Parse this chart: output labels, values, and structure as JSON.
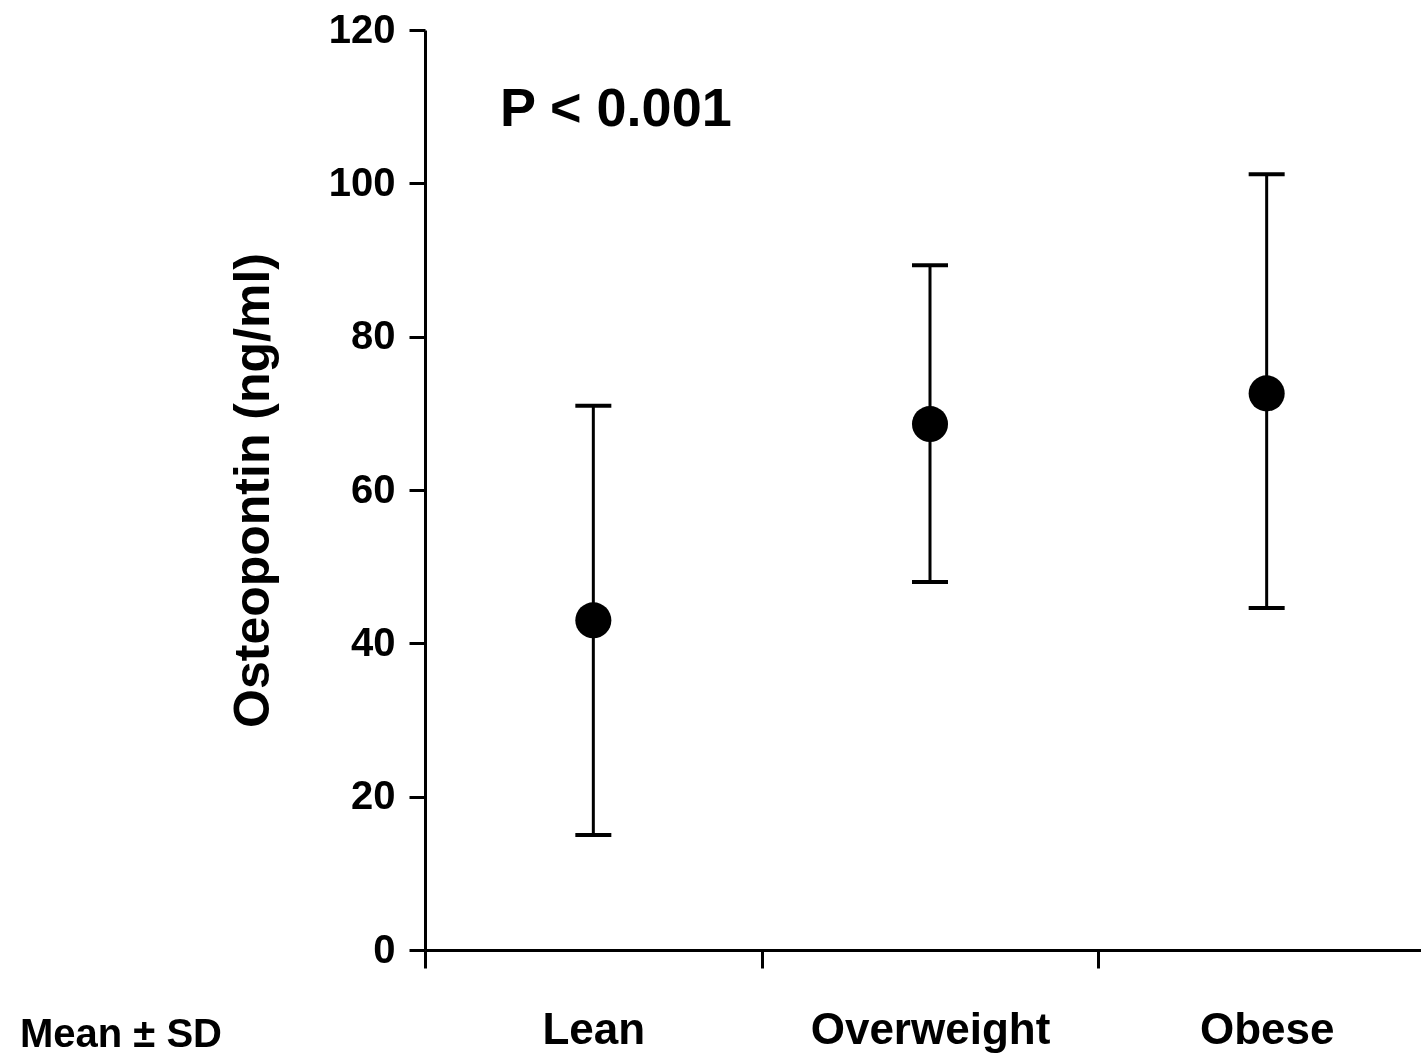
{
  "chart_data": {
    "type": "scatter",
    "ylabel": "Osteopontin (ng/ml)",
    "categories": [
      "Lean",
      "Overweight",
      "Obese"
    ],
    "values": [
      43,
      68.6,
      72.6
    ],
    "errors": [
      [
        15,
        71
      ],
      [
        48,
        89.3
      ],
      [
        44.6,
        101.2
      ]
    ],
    "color": "#000000",
    "marker": "circle",
    "ylim": [
      0,
      120
    ],
    "yticks": [
      0,
      20,
      40,
      60,
      80,
      100,
      120
    ],
    "grid": false,
    "annotations": [
      {
        "text": "P < 0.001"
      },
      {
        "text": "Mean ± SD"
      }
    ]
  }
}
